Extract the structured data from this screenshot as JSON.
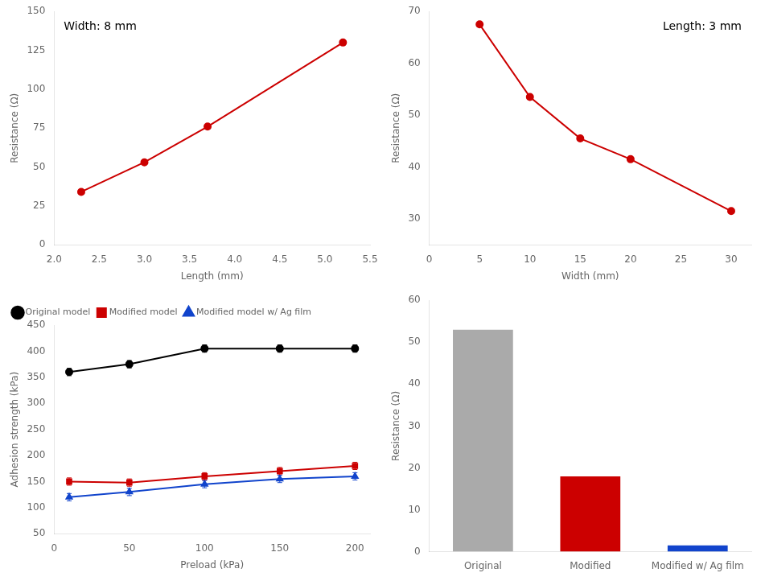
{
  "chart_data": [
    {
      "type": "line",
      "x": [
        2.3,
        3.0,
        3.7,
        5.2
      ],
      "values": [
        34,
        53,
        76,
        130
      ],
      "color": "#cc0000",
      "marker": "circle",
      "xlabel": "Length (mm)",
      "ylabel": "Resistance (Ω)",
      "xlim": [
        2.0,
        5.5
      ],
      "xticks": [
        {
          "value": 2.0,
          "label": "2.0"
        },
        2.5,
        {
          "value": 3.0,
          "label": "3.0"
        },
        3.5,
        {
          "value": 4.0,
          "label": "4.0"
        },
        4.5,
        {
          "value": 5.0,
          "label": "5.0"
        },
        5.5
      ],
      "ylim": [
        0,
        150
      ],
      "yticks": [
        0,
        25,
        50,
        75,
        100,
        125,
        150
      ],
      "annotation": "Width: 8 mm",
      "grid": false
    },
    {
      "type": "line",
      "x": [
        5,
        10,
        15,
        20,
        30
      ],
      "values": [
        67.5,
        53.5,
        45.5,
        41.5,
        31.5
      ],
      "color": "#cc0000",
      "marker": "circle",
      "xlabel": "Width (mm)",
      "ylabel": "Resistance (Ω)",
      "xlim": [
        0,
        32
      ],
      "xticks": [
        0,
        5,
        10,
        15,
        20,
        25,
        30
      ],
      "ylim": [
        25,
        70
      ],
      "yticks": [
        30,
        40,
        50,
        60,
        70
      ],
      "annotation": "Length: 3 mm",
      "grid": false
    },
    {
      "type": "line",
      "x": [
        10,
        50,
        100,
        150,
        200
      ],
      "series": [
        {
          "name": "Original model",
          "color": "black",
          "marker": "circle",
          "values": [
            360,
            375,
            405,
            405,
            405
          ],
          "errors": [
            7,
            7,
            7,
            7,
            7
          ]
        },
        {
          "name": "Modified model",
          "color": "#cc0000",
          "marker": "square",
          "values": [
            150,
            148,
            160,
            170,
            180
          ],
          "errors": [
            7,
            7,
            7,
            7,
            7
          ]
        },
        {
          "name": "Modified model w/ Ag film",
          "color": "#1144cc",
          "marker": "triangle",
          "values": [
            120,
            130,
            145,
            155,
            160
          ],
          "errors": [
            7,
            7,
            7,
            7,
            7
          ]
        }
      ],
      "xlabel": "Preload (kPa)",
      "ylabel": "Adhesion strength (kPa)",
      "xlim": [
        0,
        210
      ],
      "xticks": [
        0,
        50,
        100,
        150,
        200
      ],
      "ylim": [
        50,
        450
      ],
      "yticks": [
        50,
        100,
        150,
        200,
        250,
        300,
        350,
        400,
        450
      ],
      "legend": "upper left",
      "grid": false
    },
    {
      "type": "bar",
      "categories": [
        "Original",
        "Modified",
        "Modified w/ Ag film"
      ],
      "values": [
        53,
        18,
        1.5
      ],
      "colors": [
        "#aaaaaa",
        "#cc0000",
        "#1144cc"
      ],
      "ylabel": "Resistance (Ω)",
      "ylim": [
        0,
        60
      ],
      "yticks": [
        0,
        10,
        20,
        30,
        40,
        50,
        60
      ],
      "grid": false
    }
  ]
}
